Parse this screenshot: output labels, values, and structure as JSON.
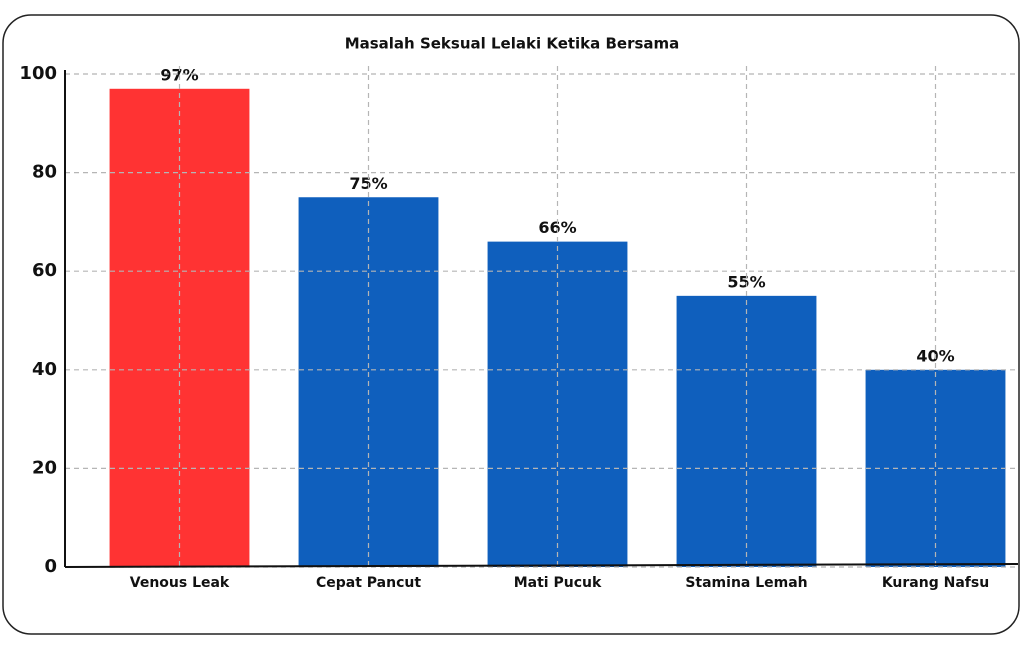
{
  "chart_data": {
    "type": "bar",
    "title": "Masalah Seksual Lelaki Ketika Bersama",
    "categories": [
      "Venous Leak",
      "Cepat Pancut",
      "Mati Pucuk",
      "Stamina Lemah",
      "Kurang Nafsu"
    ],
    "values": [
      97,
      75,
      66,
      55,
      40
    ],
    "value_labels": [
      "97%",
      "75%",
      "66%",
      "55%",
      "40%"
    ],
    "colors": [
      "#ff3333",
      "#0f5fbd",
      "#0f5fbd",
      "#0f5fbd",
      "#0f5fbd"
    ],
    "ylim": [
      0,
      100
    ],
    "yticks": [
      0,
      20,
      40,
      60,
      80,
      100
    ],
    "grid": true
  }
}
